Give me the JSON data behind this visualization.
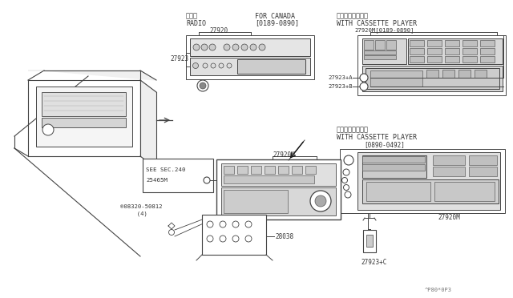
{
  "bg_color": "#ffffff",
  "lc": "#444444",
  "tc": "#333333",
  "figsize": [
    6.4,
    3.72
  ],
  "dpi": 100,
  "watermark": "^P80*0P3",
  "labels": {
    "radio_jp": "ラジオ",
    "radio_en": "RADIO",
    "canada": "FOR CANADA",
    "canada_date": "[0189-0890]",
    "cassette_jp": "カセット付ラジオ",
    "cassette_en": "WITH CASSETTE PLAYER",
    "cassette_jp2": "カセット付ラジオ",
    "cassette_en2": "WITH CASSETTE PLAYER",
    "date2": "[0890-0492]",
    "see_sec": "SEE SEC.240",
    "part_27920": "27920",
    "part_27923": "27923",
    "part_27920M_top": "27920M[0189-0890]",
    "part_27923A": "27923+A",
    "part_27923B": "27923+B",
    "part_27920M_mid": "27920M",
    "part_25465M": "25465M",
    "part_screw": "®08320-50812",
    "part_screw2": "  (4)",
    "part_28038": "28038",
    "part_27920M_bot": "27920M",
    "part_27923C": "27923+C"
  }
}
